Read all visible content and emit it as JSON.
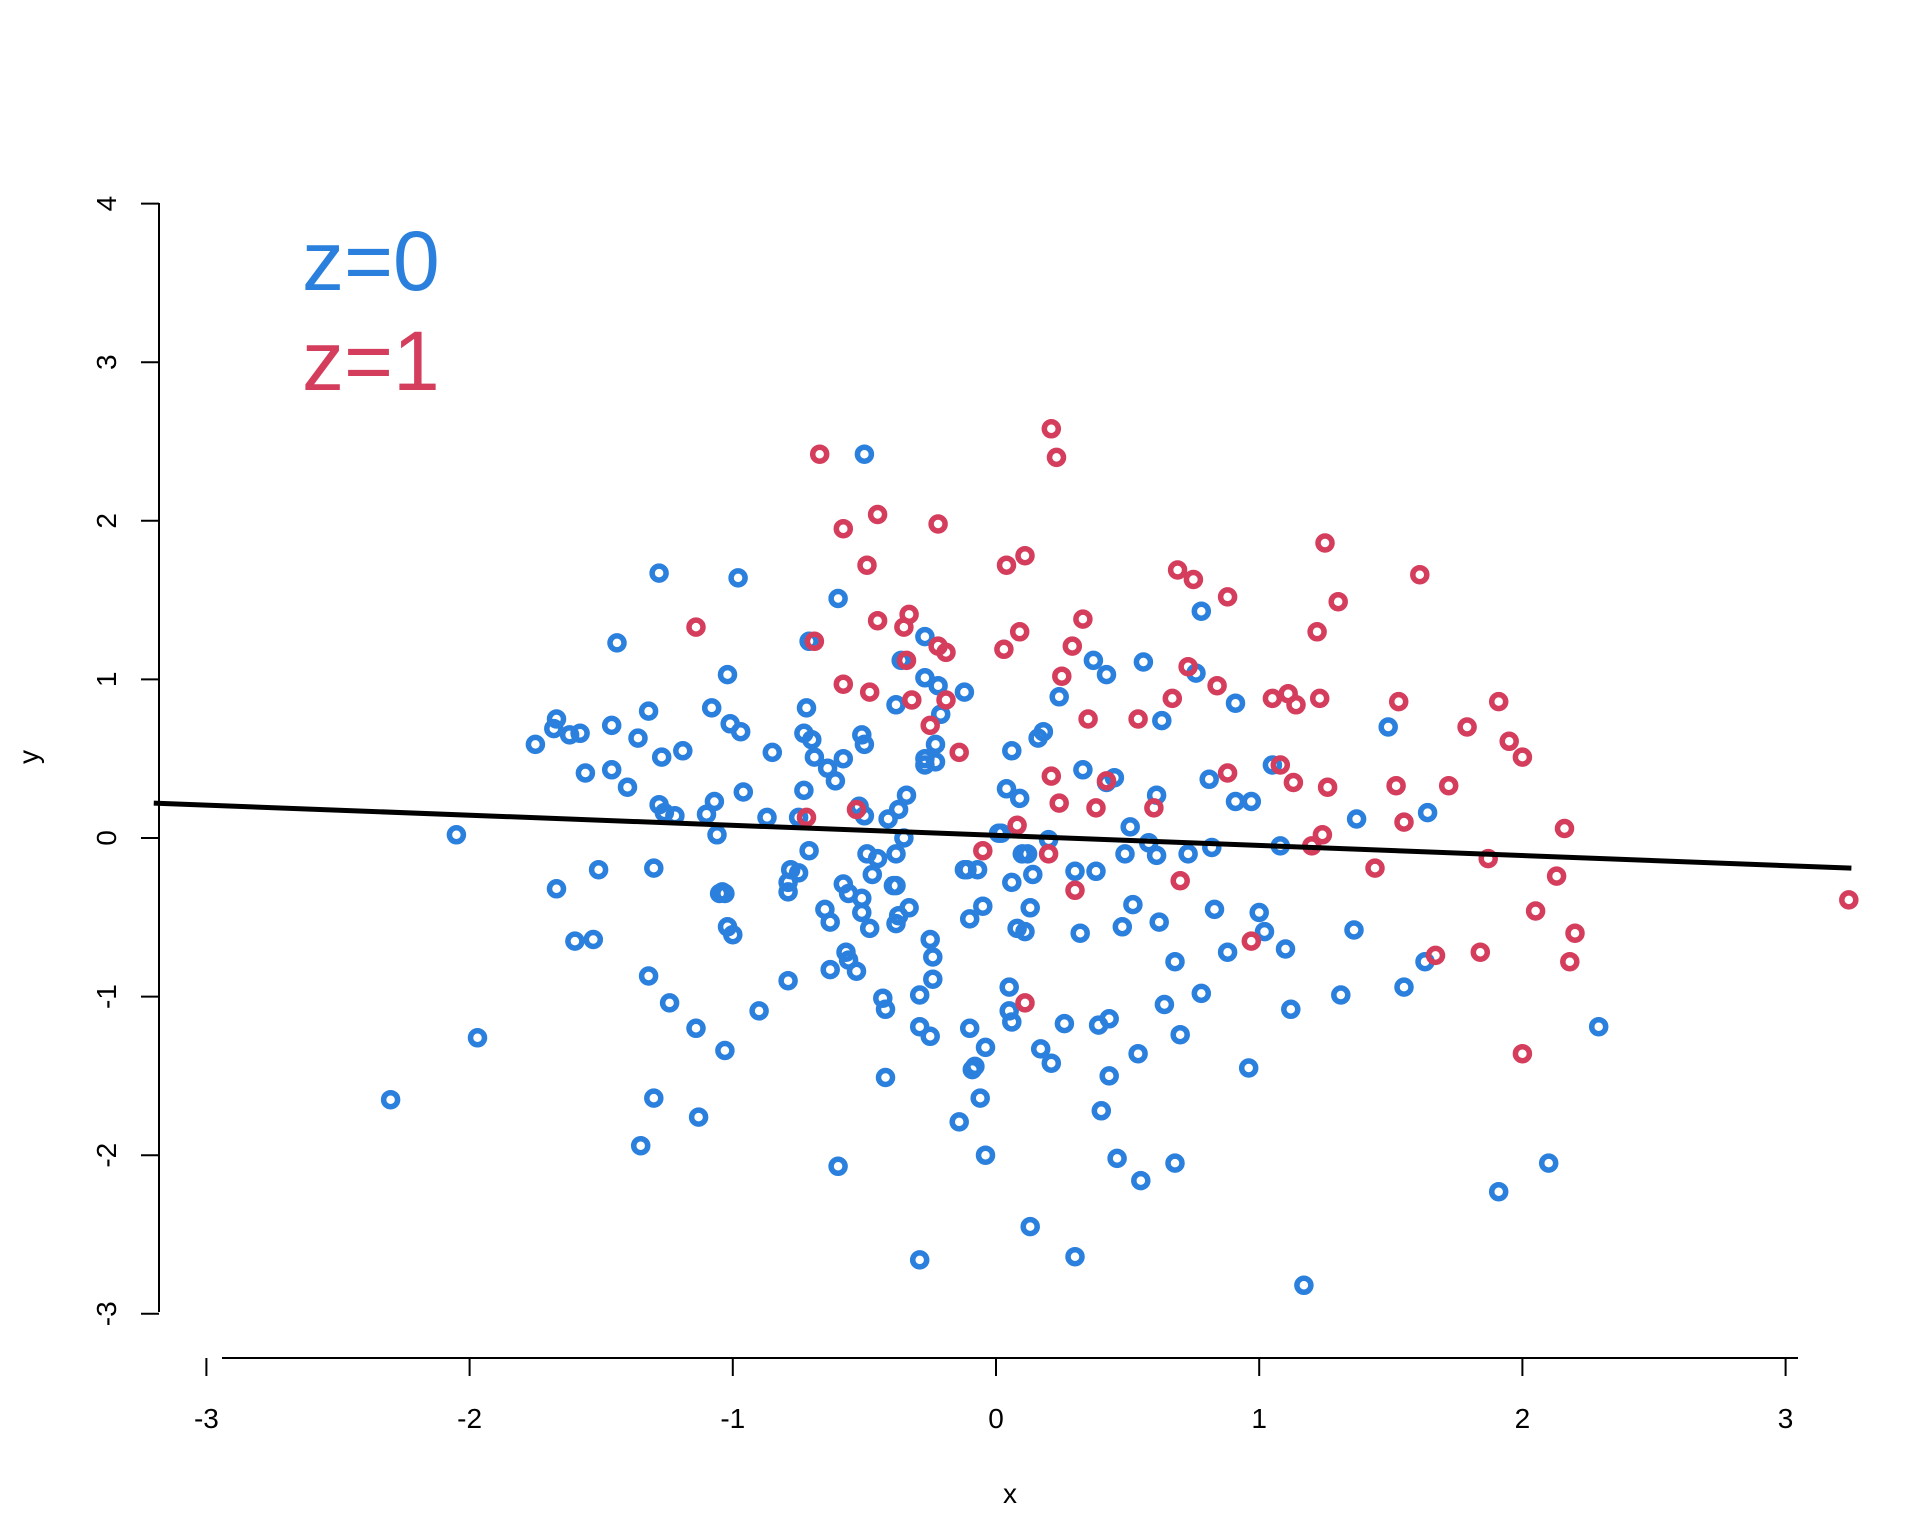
{
  "chart_data": {
    "type": "scatter",
    "title": "",
    "xlabel": "x",
    "ylabel": "y",
    "xlim": [
      -3.2,
      3.25
    ],
    "ylim": [
      -3.1,
      4.0
    ],
    "x_ticks": [
      -3,
      -2,
      -1,
      0,
      1,
      2,
      3
    ],
    "y_ticks": [
      -3,
      -2,
      -1,
      0,
      1,
      2,
      3,
      4
    ],
    "x_tick_labels": [
      "-3",
      "-2",
      "-1",
      "0",
      "1",
      "2",
      "3"
    ],
    "y_tick_labels": [
      "-3",
      "-2",
      "-1",
      "0",
      "1",
      "2",
      "3",
      "4"
    ],
    "grid": false,
    "legend": {
      "placement": "top-left",
      "entries": [
        {
          "label": "z=0",
          "color": "#2a80dc"
        },
        {
          "label": "z=1",
          "color": "#d43d5c"
        }
      ]
    },
    "fit_line": {
      "x": [
        -3.2,
        3.25
      ],
      "y": [
        0.22,
        -0.19
      ],
      "color": "#000000"
    },
    "series": [
      {
        "color": "#2a80dc",
        "points": [
          [
            -2.3,
            -1.65
          ],
          [
            -2.05,
            0.02
          ],
          [
            -1.97,
            -1.26
          ],
          [
            -1.75,
            0.59
          ],
          [
            -1.68,
            0.69
          ],
          [
            -1.67,
            0.75
          ],
          [
            -1.62,
            0.65
          ],
          [
            -1.58,
            0.66
          ],
          [
            -1.56,
            0.41
          ],
          [
            -1.67,
            -0.32
          ],
          [
            -1.6,
            -0.65
          ],
          [
            -1.53,
            -0.64
          ],
          [
            -1.51,
            -0.2
          ],
          [
            -1.46,
            0.71
          ],
          [
            -1.46,
            0.43
          ],
          [
            -1.44,
            1.23
          ],
          [
            -1.4,
            0.32
          ],
          [
            -1.36,
            0.63
          ],
          [
            -1.35,
            -1.94
          ],
          [
            -1.32,
            0.8
          ],
          [
            -1.32,
            -0.87
          ],
          [
            -1.3,
            -0.19
          ],
          [
            -1.3,
            -1.64
          ],
          [
            -1.28,
            1.67
          ],
          [
            -1.28,
            0.21
          ],
          [
            -1.27,
            0.51
          ],
          [
            -1.26,
            0.16
          ],
          [
            -1.24,
            -1.04
          ],
          [
            -1.22,
            0.14
          ],
          [
            -1.19,
            0.55
          ],
          [
            -1.14,
            -1.2
          ],
          [
            -1.13,
            -1.76
          ],
          [
            -1.1,
            0.15
          ],
          [
            -1.08,
            0.82
          ],
          [
            -1.07,
            0.23
          ],
          [
            -1.06,
            0.02
          ],
          [
            -1.05,
            -0.35
          ],
          [
            -1.04,
            -0.34
          ],
          [
            -1.03,
            -0.35
          ],
          [
            -1.03,
            -1.34
          ],
          [
            -1.02,
            -0.56
          ],
          [
            -1.02,
            1.03
          ],
          [
            -1.01,
            0.72
          ],
          [
            -1.0,
            -0.61
          ],
          [
            -0.98,
            1.64
          ],
          [
            -0.97,
            0.67
          ],
          [
            -0.96,
            0.29
          ],
          [
            -0.9,
            -1.09
          ],
          [
            -0.87,
            0.13
          ],
          [
            -0.85,
            0.54
          ],
          [
            -0.79,
            -0.9
          ],
          [
            -0.79,
            -0.28
          ],
          [
            -0.79,
            -0.34
          ],
          [
            -0.78,
            -0.2
          ],
          [
            -0.75,
            -0.22
          ],
          [
            -0.75,
            0.13
          ],
          [
            -0.73,
            0.3
          ],
          [
            -0.73,
            0.66
          ],
          [
            -0.72,
            0.82
          ],
          [
            -0.71,
            -0.08
          ],
          [
            -0.71,
            1.24
          ],
          [
            -0.7,
            0.62
          ],
          [
            -0.69,
            0.51
          ],
          [
            -0.65,
            -0.45
          ],
          [
            -0.64,
            0.44
          ],
          [
            -0.63,
            -0.53
          ],
          [
            -0.63,
            -0.83
          ],
          [
            -0.61,
            0.36
          ],
          [
            -0.6,
            1.51
          ],
          [
            -0.6,
            -2.07
          ],
          [
            -0.58,
            -0.29
          ],
          [
            -0.58,
            0.5
          ],
          [
            -0.57,
            -0.72
          ],
          [
            -0.56,
            -0.77
          ],
          [
            -0.56,
            -0.35
          ],
          [
            -0.53,
            -0.84
          ],
          [
            -0.52,
            0.2
          ],
          [
            -0.51,
            0.65
          ],
          [
            -0.51,
            -0.38
          ],
          [
            -0.51,
            -0.47
          ],
          [
            -0.5,
            2.42
          ],
          [
            -0.5,
            0.59
          ],
          [
            -0.5,
            0.14
          ],
          [
            -0.49,
            -0.1
          ],
          [
            -0.48,
            -0.57
          ],
          [
            -0.47,
            -0.23
          ],
          [
            -0.45,
            -0.13
          ],
          [
            -0.43,
            -1.01
          ],
          [
            -0.42,
            -1.08
          ],
          [
            -0.42,
            -1.51
          ],
          [
            -0.41,
            0.12
          ],
          [
            -0.39,
            -0.3
          ],
          [
            -0.38,
            -0.1
          ],
          [
            -0.38,
            -0.54
          ],
          [
            -0.38,
            0.84
          ],
          [
            -0.38,
            -0.3
          ],
          [
            -0.37,
            0.18
          ],
          [
            -0.37,
            -0.49
          ],
          [
            -0.36,
            1.12
          ],
          [
            -0.35,
            0.0
          ],
          [
            -0.34,
            0.27
          ],
          [
            -0.33,
            -0.44
          ],
          [
            -0.29,
            -1.19
          ],
          [
            -0.29,
            -0.99
          ],
          [
            -0.29,
            -2.66
          ],
          [
            -0.27,
            1.27
          ],
          [
            -0.27,
            1.01
          ],
          [
            -0.27,
            0.5
          ],
          [
            -0.27,
            0.46
          ],
          [
            -0.25,
            -0.64
          ],
          [
            -0.25,
            -1.25
          ],
          [
            -0.24,
            -0.75
          ],
          [
            -0.24,
            -0.89
          ],
          [
            -0.23,
            0.48
          ],
          [
            -0.23,
            0.59
          ],
          [
            -0.22,
            0.96
          ],
          [
            -0.21,
            0.78
          ],
          [
            -0.12,
            0.92
          ],
          [
            -0.12,
            -0.2
          ],
          [
            -0.11,
            -0.2
          ],
          [
            -0.1,
            -1.2
          ],
          [
            -0.1,
            -0.51
          ],
          [
            -0.09,
            -1.46
          ],
          [
            -0.08,
            -1.44
          ],
          [
            -0.07,
            -0.2
          ],
          [
            -0.06,
            -1.64
          ],
          [
            -0.05,
            -0.43
          ],
          [
            -0.04,
            -1.32
          ],
          [
            -0.04,
            -2.0
          ],
          [
            -0.14,
            -1.79
          ],
          [
            0.01,
            0.03
          ],
          [
            0.02,
            0.03
          ],
          [
            0.04,
            0.31
          ],
          [
            0.05,
            -0.94
          ],
          [
            0.05,
            -1.09
          ],
          [
            0.06,
            0.55
          ],
          [
            0.06,
            -0.28
          ],
          [
            0.06,
            -1.16
          ],
          [
            0.08,
            -0.57
          ],
          [
            0.09,
            0.25
          ],
          [
            0.1,
            -0.1
          ],
          [
            0.11,
            -0.59
          ],
          [
            0.12,
            -0.1
          ],
          [
            0.13,
            -2.45
          ],
          [
            0.13,
            -0.44
          ],
          [
            0.14,
            -0.23
          ],
          [
            0.16,
            0.63
          ],
          [
            0.17,
            -1.33
          ],
          [
            0.18,
            0.67
          ],
          [
            0.2,
            -0.01
          ],
          [
            0.21,
            -1.42
          ],
          [
            0.24,
            0.89
          ],
          [
            0.26,
            -1.17
          ],
          [
            0.3,
            -0.21
          ],
          [
            0.3,
            -2.64
          ],
          [
            0.32,
            -0.6
          ],
          [
            0.33,
            0.43
          ],
          [
            0.37,
            1.12
          ],
          [
            0.38,
            -0.21
          ],
          [
            0.39,
            -1.18
          ],
          [
            0.4,
            -1.72
          ],
          [
            0.42,
            1.03
          ],
          [
            0.42,
            0.35
          ],
          [
            0.43,
            -1.5
          ],
          [
            0.43,
            -1.14
          ],
          [
            0.45,
            0.38
          ],
          [
            0.46,
            -2.02
          ],
          [
            0.48,
            -0.56
          ],
          [
            0.49,
            -0.1
          ],
          [
            0.51,
            0.07
          ],
          [
            0.52,
            -0.42
          ],
          [
            0.54,
            -1.36
          ],
          [
            0.55,
            -2.16
          ],
          [
            0.56,
            1.11
          ],
          [
            0.58,
            -0.03
          ],
          [
            0.61,
            0.27
          ],
          [
            0.61,
            -0.11
          ],
          [
            0.62,
            -0.53
          ],
          [
            0.63,
            0.74
          ],
          [
            0.64,
            -1.05
          ],
          [
            0.68,
            -0.78
          ],
          [
            0.68,
            -2.05
          ],
          [
            0.7,
            -1.24
          ],
          [
            0.73,
            -0.1
          ],
          [
            0.76,
            1.04
          ],
          [
            0.78,
            1.43
          ],
          [
            0.78,
            -0.98
          ],
          [
            0.81,
            0.37
          ],
          [
            0.82,
            -0.06
          ],
          [
            0.83,
            -0.45
          ],
          [
            0.88,
            -0.72
          ],
          [
            0.91,
            0.23
          ],
          [
            0.91,
            0.85
          ],
          [
            0.96,
            -1.45
          ],
          [
            0.97,
            0.23
          ],
          [
            1.0,
            -0.47
          ],
          [
            1.02,
            -0.59
          ],
          [
            1.05,
            0.46
          ],
          [
            1.08,
            -0.05
          ],
          [
            1.1,
            -0.7
          ],
          [
            1.12,
            -1.08
          ],
          [
            1.31,
            -0.99
          ],
          [
            1.36,
            -0.58
          ],
          [
            1.37,
            0.12
          ],
          [
            1.49,
            0.7
          ],
          [
            1.55,
            -0.94
          ],
          [
            1.63,
            -0.78
          ],
          [
            1.64,
            0.16
          ],
          [
            1.17,
            -2.82
          ],
          [
            1.91,
            -2.23
          ],
          [
            2.1,
            -2.05
          ],
          [
            2.29,
            -1.19
          ]
        ]
      },
      {
        "color": "#d43d5c",
        "points": [
          [
            -1.14,
            1.33
          ],
          [
            -0.67,
            2.42
          ],
          [
            -0.69,
            1.24
          ],
          [
            -0.72,
            0.13
          ],
          [
            -0.58,
            1.95
          ],
          [
            -0.58,
            0.97
          ],
          [
            -0.53,
            0.18
          ],
          [
            -0.49,
            1.72
          ],
          [
            -0.48,
            0.92
          ],
          [
            -0.45,
            1.37
          ],
          [
            -0.45,
            2.04
          ],
          [
            -0.35,
            1.33
          ],
          [
            -0.34,
            1.12
          ],
          [
            -0.33,
            1.41
          ],
          [
            -0.32,
            0.87
          ],
          [
            -0.25,
            0.71
          ],
          [
            -0.22,
            1.98
          ],
          [
            -0.22,
            1.21
          ],
          [
            -0.19,
            0.87
          ],
          [
            -0.19,
            1.17
          ],
          [
            -0.14,
            0.54
          ],
          [
            -0.05,
            -0.08
          ],
          [
            0.03,
            1.19
          ],
          [
            0.04,
            1.72
          ],
          [
            0.08,
            0.08
          ],
          [
            0.09,
            1.3
          ],
          [
            0.11,
            1.78
          ],
          [
            0.11,
            -1.04
          ],
          [
            0.2,
            -0.1
          ],
          [
            0.21,
            0.39
          ],
          [
            0.21,
            2.58
          ],
          [
            0.23,
            2.4
          ],
          [
            0.24,
            0.22
          ],
          [
            0.25,
            1.02
          ],
          [
            0.29,
            1.21
          ],
          [
            0.3,
            -0.33
          ],
          [
            0.33,
            1.38
          ],
          [
            0.35,
            0.75
          ],
          [
            0.38,
            0.19
          ],
          [
            0.42,
            0.36
          ],
          [
            0.54,
            0.75
          ],
          [
            0.6,
            0.19
          ],
          [
            0.67,
            0.88
          ],
          [
            0.69,
            1.69
          ],
          [
            0.7,
            -0.27
          ],
          [
            0.73,
            1.08
          ],
          [
            0.75,
            1.63
          ],
          [
            0.84,
            0.96
          ],
          [
            0.88,
            1.52
          ],
          [
            0.88,
            0.41
          ],
          [
            0.97,
            -0.65
          ],
          [
            1.05,
            0.88
          ],
          [
            1.08,
            0.46
          ],
          [
            1.11,
            0.91
          ],
          [
            1.13,
            0.35
          ],
          [
            1.14,
            0.84
          ],
          [
            1.2,
            -0.05
          ],
          [
            1.22,
            1.3
          ],
          [
            1.23,
            0.88
          ],
          [
            1.24,
            0.02
          ],
          [
            1.25,
            1.86
          ],
          [
            1.26,
            0.32
          ],
          [
            1.3,
            1.49
          ],
          [
            1.44,
            -0.19
          ],
          [
            1.52,
            0.33
          ],
          [
            1.53,
            0.86
          ],
          [
            1.55,
            0.1
          ],
          [
            1.61,
            1.66
          ],
          [
            1.67,
            -0.74
          ],
          [
            1.72,
            0.33
          ],
          [
            1.79,
            0.7
          ],
          [
            1.84,
            -0.72
          ],
          [
            1.87,
            -0.13
          ],
          [
            1.91,
            0.86
          ],
          [
            1.95,
            0.61
          ],
          [
            2.0,
            0.51
          ],
          [
            2.0,
            -1.36
          ],
          [
            2.05,
            -0.46
          ],
          [
            2.13,
            -0.24
          ],
          [
            2.16,
            0.06
          ],
          [
            2.18,
            -0.78
          ],
          [
            2.2,
            -0.6
          ],
          [
            3.24,
            -0.39
          ]
        ]
      }
    ]
  }
}
